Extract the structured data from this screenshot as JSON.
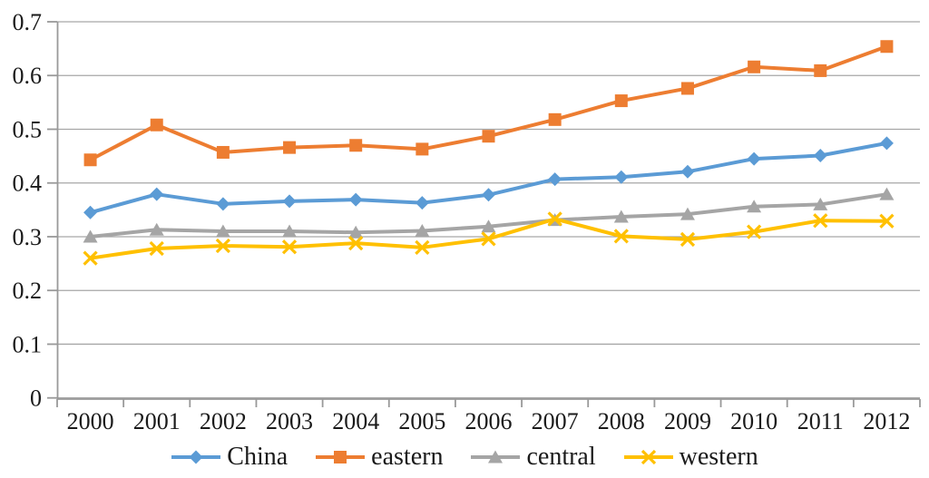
{
  "chart_data": {
    "type": "line",
    "title": "",
    "xlabel": "",
    "ylabel": "",
    "categories": [
      "2000",
      "2001",
      "2002",
      "2003",
      "2004",
      "2005",
      "2006",
      "2007",
      "2008",
      "2009",
      "2010",
      "2011",
      "2012"
    ],
    "series": [
      {
        "name": "China",
        "marker": "diamond",
        "color": "#5B9BD5",
        "values": [
          0.345,
          0.379,
          0.361,
          0.366,
          0.369,
          0.363,
          0.378,
          0.407,
          0.411,
          0.421,
          0.445,
          0.451,
          0.474
        ]
      },
      {
        "name": "eastern",
        "marker": "square",
        "color": "#ED7D31",
        "values": [
          0.443,
          0.508,
          0.457,
          0.466,
          0.47,
          0.463,
          0.487,
          0.518,
          0.553,
          0.576,
          0.616,
          0.609,
          0.654
        ]
      },
      {
        "name": "central",
        "marker": "triangle",
        "color": "#A5A5A5",
        "values": [
          0.3,
          0.313,
          0.31,
          0.31,
          0.308,
          0.311,
          0.319,
          0.331,
          0.337,
          0.342,
          0.356,
          0.36,
          0.379
        ]
      },
      {
        "name": "western",
        "marker": "x",
        "color": "#FFC000",
        "values": [
          0.26,
          0.278,
          0.283,
          0.281,
          0.288,
          0.28,
          0.296,
          0.333,
          0.301,
          0.295,
          0.309,
          0.33,
          0.329
        ]
      }
    ],
    "y_axis": {
      "min": 0,
      "max": 0.7,
      "step": 0.1,
      "tick_labels_top_to_bottom": [
        "0.7",
        "0.6",
        "0.5",
        "0.4",
        "0.3",
        "0.2",
        "0.1",
        "0"
      ]
    },
    "grid": true,
    "legend_position": "bottom"
  },
  "colors": {
    "background": "#FFFFFF",
    "gridline": "#A6A6A6",
    "axis": "#999999",
    "text": "#1A1A1A"
  }
}
